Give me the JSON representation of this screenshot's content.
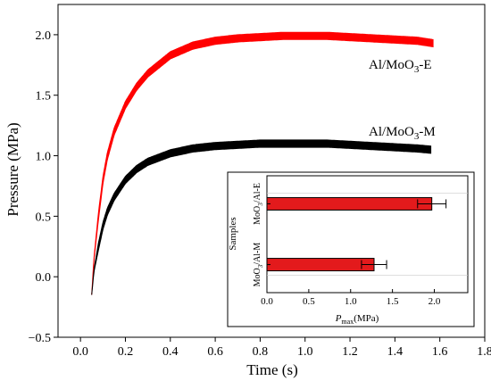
{
  "chart_data": [
    {
      "type": "line",
      "xlabel": "Time (s)",
      "ylabel": "Pressure (MPa)",
      "xlim": [
        -0.1,
        1.8
      ],
      "ylim": [
        -0.5,
        2.25
      ],
      "xticks": [
        "0.0",
        "0.2",
        "0.4",
        "0.6",
        "0.8",
        "1.0",
        "1.2",
        "1.4",
        "1.6",
        "1.8"
      ],
      "yticks": [
        "-0.5",
        "0.0",
        "0.5",
        "1.0",
        "1.5",
        "2.0"
      ],
      "series": [
        {
          "name": "Al/MoO3-E",
          "color": "#ff0000",
          "x": [
            0.05,
            0.06,
            0.08,
            0.1,
            0.12,
            0.15,
            0.2,
            0.25,
            0.3,
            0.4,
            0.5,
            0.6,
            0.7,
            0.8,
            0.9,
            1.0,
            1.1,
            1.2,
            1.3,
            1.4,
            1.5,
            1.57
          ],
          "y": [
            -0.15,
            0.15,
            0.5,
            0.8,
            1.0,
            1.2,
            1.42,
            1.57,
            1.68,
            1.83,
            1.91,
            1.95,
            1.97,
            1.98,
            1.99,
            1.99,
            1.99,
            1.98,
            1.97,
            1.96,
            1.95,
            1.93
          ],
          "noise": 0.06
        },
        {
          "name": "Al/MoO3-M",
          "color": "#000000",
          "x": [
            0.05,
            0.06,
            0.08,
            0.1,
            0.12,
            0.15,
            0.2,
            0.25,
            0.3,
            0.4,
            0.5,
            0.6,
            0.7,
            0.8,
            0.9,
            1.0,
            1.1,
            1.2,
            1.3,
            1.4,
            1.5,
            1.56
          ],
          "y": [
            -0.15,
            0.05,
            0.25,
            0.42,
            0.54,
            0.66,
            0.8,
            0.89,
            0.95,
            1.02,
            1.06,
            1.08,
            1.09,
            1.1,
            1.1,
            1.1,
            1.1,
            1.09,
            1.08,
            1.07,
            1.06,
            1.05
          ],
          "noise": 0.06
        }
      ]
    },
    {
      "type": "bar",
      "orientation": "horizontal",
      "ylabel": "Samples",
      "xlabel_main": "P",
      "xlabel_sub": "max",
      "xlabel_unit": "(MPa)",
      "xlim": [
        0.0,
        2.4
      ],
      "xticks": [
        "0.0",
        "0.5",
        "1.0",
        "1.5",
        "2.0"
      ],
      "categories": [
        {
          "main": "MoO",
          "sub": "3",
          "rest": "/Al-E"
        },
        {
          "main": "MoO",
          "sub": "3",
          "rest": "/Al-M"
        }
      ],
      "values": [
        1.97,
        1.28
      ],
      "errors": [
        0.17,
        0.15
      ],
      "color": "#e31a1c"
    }
  ],
  "labels": {
    "series_e": {
      "main": "Al/MoO",
      "sub": "3",
      "rest": "-E"
    },
    "series_m": {
      "main": "Al/MoO",
      "sub": "3",
      "rest": "-M"
    }
  }
}
